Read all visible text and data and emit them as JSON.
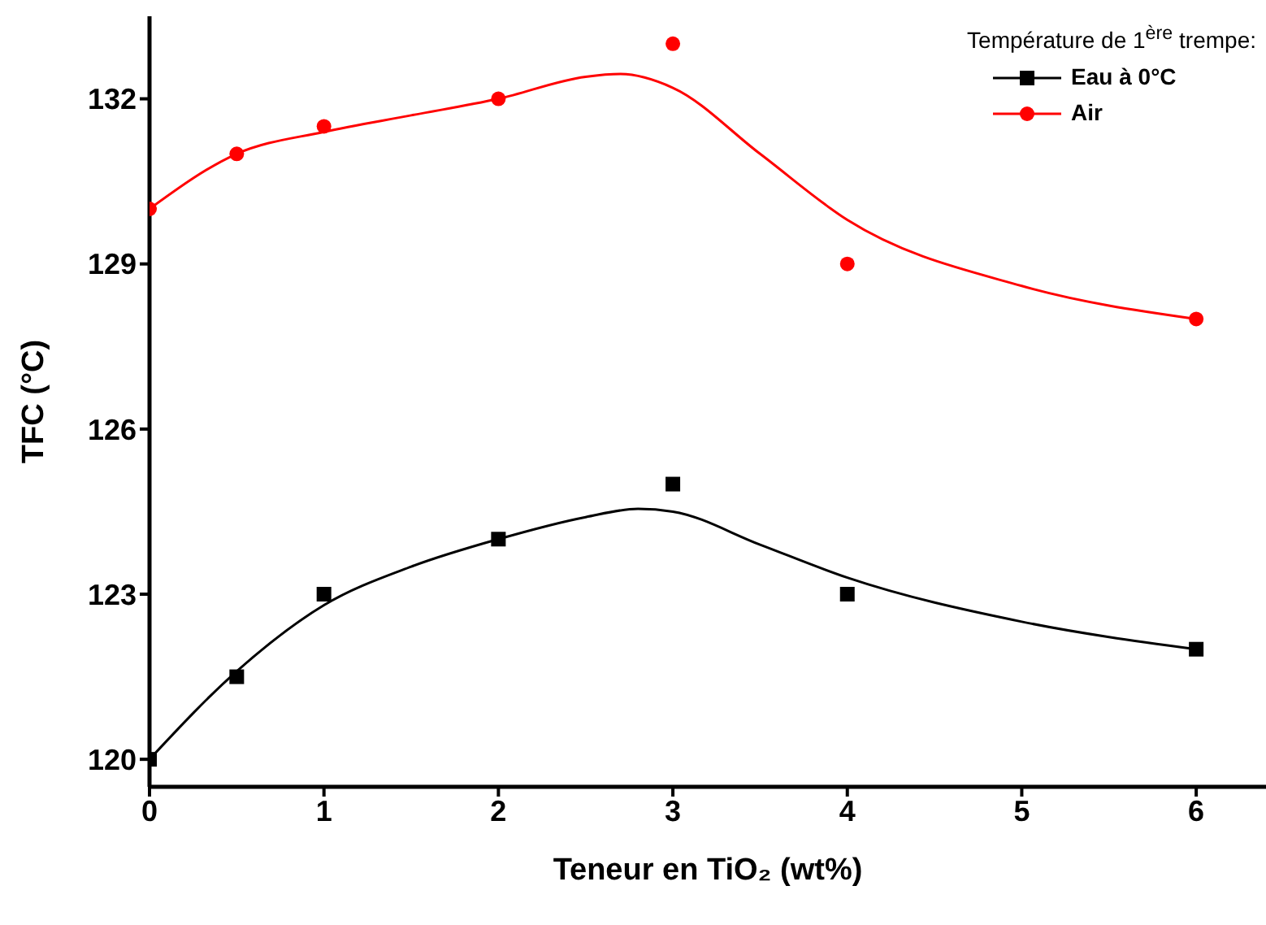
{
  "chart_data": {
    "type": "scatter",
    "xlabel": "Teneur en TiO₂ (wt%)",
    "ylabel": "TFC (°C)",
    "legend_title": "Température de 1$^{ère}$ trempe:",
    "legend": "top right",
    "grid": false,
    "x": [
      0,
      0.5,
      1,
      2,
      3,
      4,
      6
    ],
    "xlim": [
      0,
      6.4
    ],
    "xticks": [
      0,
      1,
      2,
      3,
      4,
      5,
      6
    ],
    "ylim": [
      119.5,
      133.5
    ],
    "yticks": [
      120,
      123,
      126,
      129,
      132
    ],
    "series": [
      {
        "name": "Eau à 0°C",
        "marker": "square",
        "color": "#000000",
        "values": [
          120,
          121.5,
          123,
          124,
          125,
          123,
          122
        ]
      },
      {
        "name": "Air",
        "marker": "circle",
        "color": "#ff0000",
        "values": [
          130,
          131,
          131.5,
          132,
          133,
          129,
          128
        ]
      },
      {
        "type": "line",
        "marker": "none",
        "color": "#000000",
        "x": [
          0,
          0.5,
          1,
          1.5,
          2,
          2.5,
          2.8,
          3,
          3.5,
          4,
          5,
          6
        ],
        "values": [
          120,
          121.6,
          122.8,
          123.5,
          124,
          124.4,
          124.55,
          124.5,
          123.9,
          123.3,
          122.5,
          122
        ]
      },
      {
        "type": "line",
        "marker": "none",
        "color": "#ff0000",
        "x": [
          0,
          0.5,
          1,
          1.5,
          2,
          2.5,
          2.7,
          3,
          3.5,
          4,
          5,
          6
        ],
        "values": [
          130,
          131,
          131.4,
          131.7,
          132,
          132.4,
          132.45,
          132.2,
          131,
          129.8,
          128.6,
          128
        ]
      }
    ]
  }
}
